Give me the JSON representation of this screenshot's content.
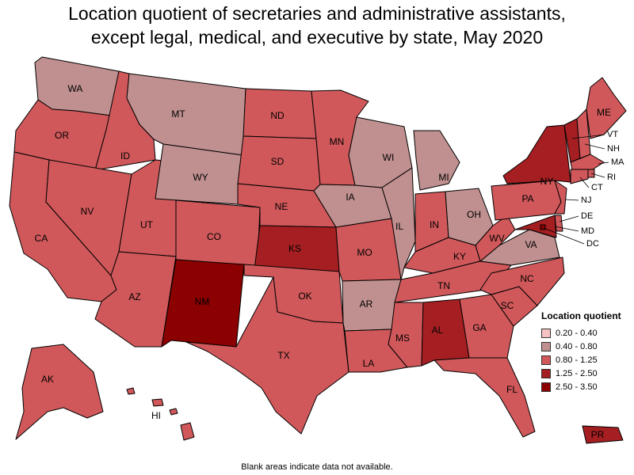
{
  "title_lines": [
    "Location quotient of secretaries and administrative assistants,",
    "except legal, medical, and executive by state, May 2020"
  ],
  "legend": {
    "title": "Location quotient",
    "items": [
      {
        "label": "0.20 - 0.40",
        "color": "#f5c3c3"
      },
      {
        "label": "0.40 - 0.80",
        "color": "#c09090"
      },
      {
        "label": "0.80 - 1.25",
        "color": "#d0585a"
      },
      {
        "label": "1.25 - 2.50",
        "color": "#a51f22"
      },
      {
        "label": "2.50 - 3.50",
        "color": "#8b0000"
      }
    ]
  },
  "footnote": "Blank areas indicate data not available.",
  "states": {
    "WA": 1,
    "OR": 2,
    "CA": 2,
    "ID": 2,
    "NV": 2,
    "UT": 2,
    "AZ": 2,
    "MT": 1,
    "WY": 1,
    "CO": 2,
    "NM": 4,
    "ND": 2,
    "SD": 2,
    "NE": 2,
    "KS": 3,
    "OK": 2,
    "TX": 2,
    "MN": 2,
    "IA": 1,
    "MO": 2,
    "AR": 1,
    "LA": 2,
    "WI": 1,
    "IL": 1,
    "MI": 1,
    "IN": 2,
    "OH": 1,
    "KY": 2,
    "TN": 2,
    "MS": 2,
    "AL": 3,
    "GA": 2,
    "FL": 2,
    "SC": 2,
    "NC": 2,
    "VA": 1,
    "WV": 2,
    "PA": 2,
    "NY": 3,
    "VT": 3,
    "NH": 2,
    "ME": 2,
    "MA": 2,
    "RI": 2,
    "CT": 2,
    "NJ": 2,
    "DE": 2,
    "MD": 3,
    "DC": 4,
    "AK": 2,
    "HI": 2,
    "PR": 3
  },
  "state_labels": [
    "WA",
    "OR",
    "CA",
    "ID",
    "NV",
    "UT",
    "AZ",
    "MT",
    "WY",
    "CO",
    "NM",
    "ND",
    "SD",
    "NE",
    "KS",
    "OK",
    "TX",
    "MN",
    "IA",
    "MO",
    "AR",
    "LA",
    "WI",
    "IL",
    "MI",
    "IN",
    "OH",
    "KY",
    "TN",
    "MS",
    "AL",
    "GA",
    "FL",
    "SC",
    "NC",
    "VA",
    "WV",
    "PA",
    "NY",
    "ME",
    "AK",
    "HI",
    "PR"
  ],
  "callout_labels": [
    "VT",
    "NH",
    "MA",
    "RI",
    "CT",
    "NJ",
    "DE",
    "MD",
    "DC"
  ]
}
